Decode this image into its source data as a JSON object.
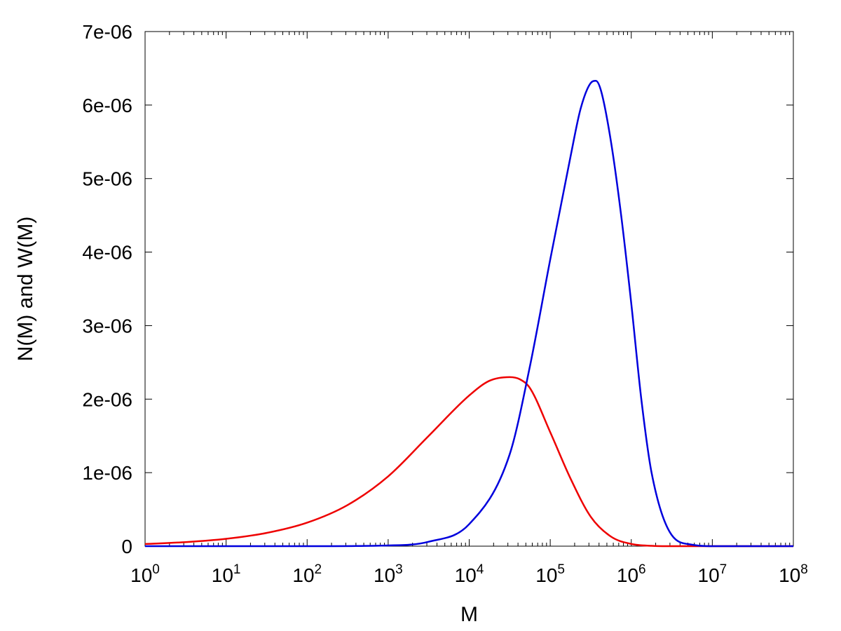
{
  "chart_data": {
    "type": "line",
    "title": "",
    "xlabel": "M",
    "ylabel": "N(M) and W(M)",
    "xscale": "log",
    "xlim": [
      1,
      100000000
    ],
    "ylim": [
      0,
      7e-06
    ],
    "x_ticks": [
      {
        "base": "10",
        "exp": "0"
      },
      {
        "base": "10",
        "exp": "1"
      },
      {
        "base": "10",
        "exp": "2"
      },
      {
        "base": "10",
        "exp": "3"
      },
      {
        "base": "10",
        "exp": "4"
      },
      {
        "base": "10",
        "exp": "5"
      },
      {
        "base": "10",
        "exp": "6"
      },
      {
        "base": "10",
        "exp": "7"
      },
      {
        "base": "10",
        "exp": "8"
      }
    ],
    "y_ticks": [
      "0",
      "1e-06",
      "2e-06",
      "3e-06",
      "4e-06",
      "5e-06",
      "6e-06",
      "7e-06"
    ],
    "grid": false,
    "legend": "none",
    "series": [
      {
        "color": "#ee0000",
        "x": [
          1,
          3.16,
          10,
          31.6,
          100,
          316,
          1000,
          3160,
          10000,
          17800,
          31600,
          42200,
          56200,
          100000,
          178000,
          316000,
          562000,
          1000000,
          1780000,
          3160000,
          10000000,
          100000000
        ],
        "y": [
          3e-08,
          5.5e-08,
          1e-07,
          1.8e-07,
          3.2e-07,
          5.6e-07,
          9.5e-07,
          1.5e-06,
          2.05e-06,
          2.25e-06,
          2.3e-06,
          2.27e-06,
          2.15e-06,
          1.55e-06,
          9.2e-07,
          4e-07,
          1.3e-07,
          3e-08,
          5e-09,
          0,
          0,
          0
        ]
      },
      {
        "color": "#0000dd",
        "x": [
          1,
          100,
          1000,
          3160,
          10000,
          31600,
          56200,
          100000,
          178000,
          237000,
          316000,
          365000,
          422000,
          562000,
          750000,
          1000000,
          1330000,
          1780000,
          3160000,
          5620000,
          10000000,
          100000000
        ],
        "y": [
          0,
          0,
          1e-08,
          6e-08,
          3e-07,
          1.25e-06,
          2.45e-06,
          3.9e-06,
          5.3e-06,
          5.95e-06,
          6.3e-06,
          6.33e-06,
          6.2e-06,
          5.5e-06,
          4.5e-06,
          3.3e-06,
          2e-06,
          1e-06,
          1.5e-07,
          2e-08,
          0,
          0
        ]
      }
    ]
  }
}
